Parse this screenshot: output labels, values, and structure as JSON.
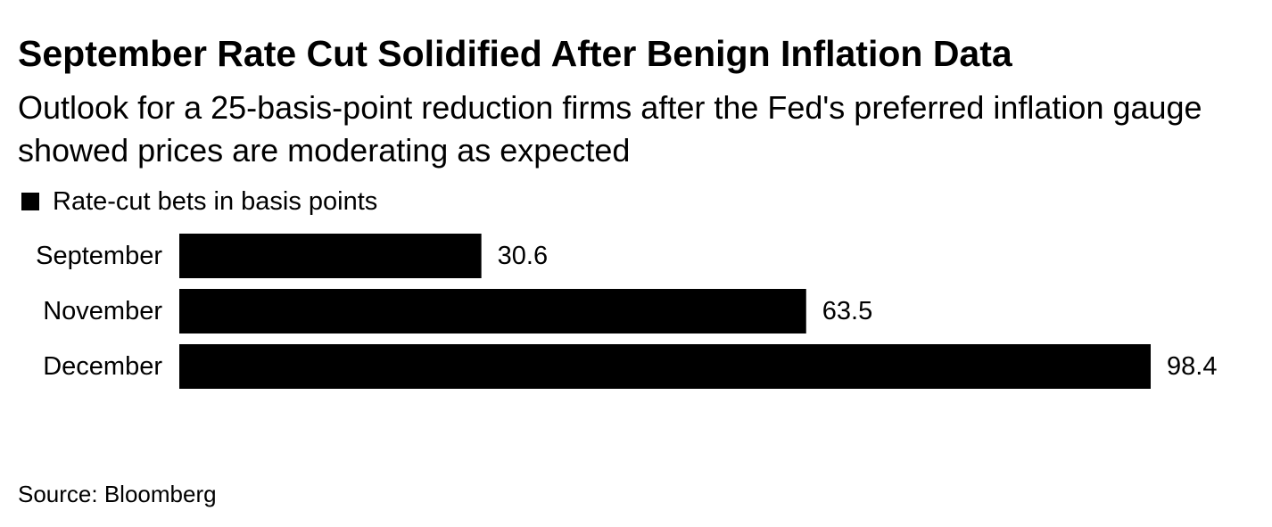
{
  "title": "September Rate Cut Solidified After Benign Inflation Data",
  "subtitle": "Outlook for a 25-basis-point reduction firms after the Fed's preferred inflation gauge showed prices are moderating as expected",
  "legend": {
    "label": "Rate-cut bets in basis points",
    "color": "#000000"
  },
  "source": "Source: Bloomberg",
  "chart_data": {
    "type": "bar",
    "orientation": "horizontal",
    "categories": [
      "September",
      "November",
      "December"
    ],
    "series": [
      {
        "name": "Rate-cut bets in basis points",
        "values": [
          30.6,
          63.5,
          98.4
        ],
        "labels": [
          "30.6",
          "63.5",
          "98.4"
        ],
        "color": "#000000"
      }
    ],
    "xlim": [
      0,
      98.4
    ],
    "grid": false,
    "legend_position": "top-left"
  }
}
